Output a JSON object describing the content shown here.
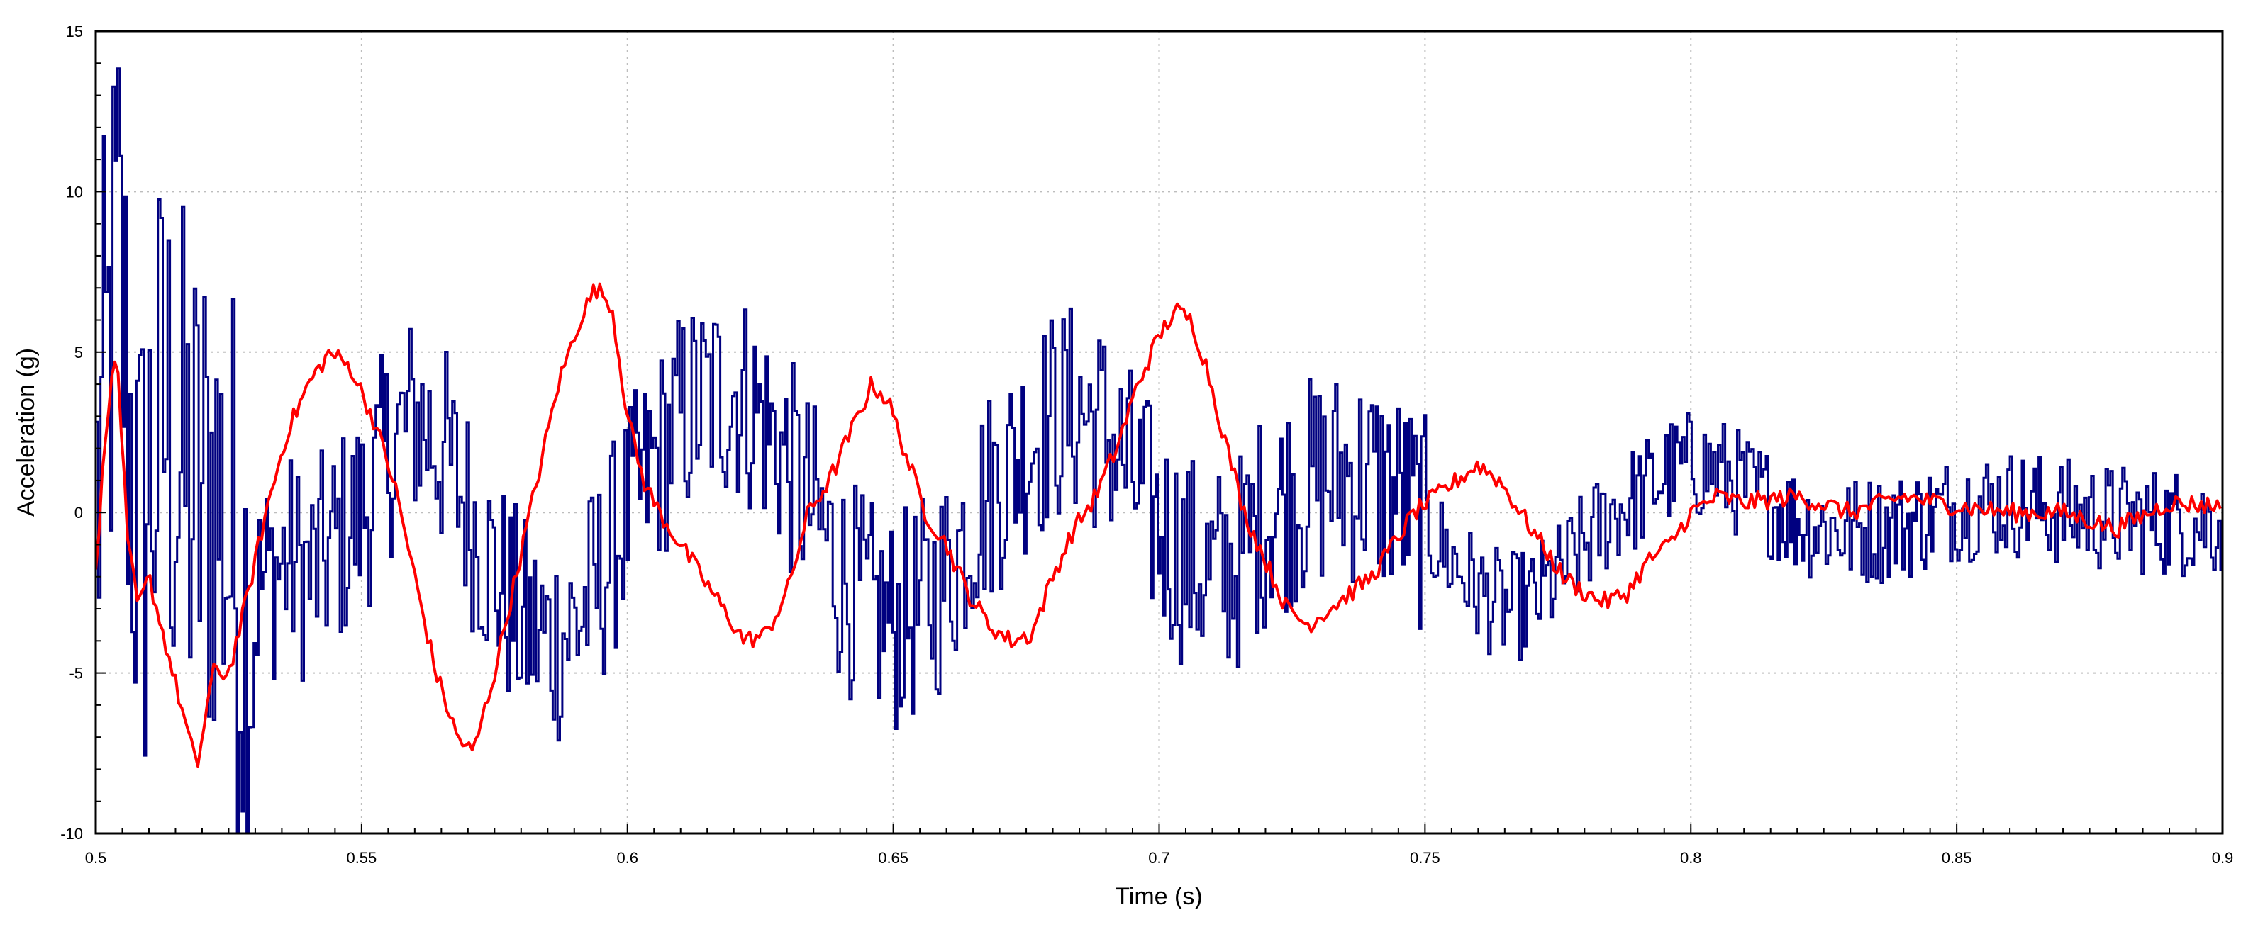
{
  "chart_data": {
    "type": "line",
    "title": "",
    "xlabel": "Time (s)",
    "ylabel": "Acceleration (g)",
    "xlim": [
      0.5,
      0.9
    ],
    "ylim": [
      -10,
      15
    ],
    "x_ticks": [
      0.5,
      0.55,
      0.6,
      0.65,
      0.7,
      0.75,
      0.8,
      0.85,
      0.9
    ],
    "x_tick_labels": [
      "0.5",
      "0.55",
      "0.6",
      "0.65",
      "0.7",
      "0.75",
      "0.8",
      "0.85",
      "0.9"
    ],
    "y_ticks": [
      -10,
      -5,
      0,
      5,
      10,
      15
    ],
    "y_tick_labels": [
      "-10",
      "-5",
      "0",
      "5",
      "10",
      "15"
    ],
    "grid": true,
    "legend": "none",
    "colors": {
      "series_blue": "#000080",
      "series_red": "#ff0000",
      "grid": "#bdbdbd"
    },
    "series": [
      {
        "color": "#000080",
        "band": 3.5,
        "x": [
          0.5,
          0.502,
          0.504,
          0.506,
          0.508,
          0.51,
          0.513,
          0.516,
          0.519,
          0.522,
          0.525,
          0.528,
          0.532,
          0.536,
          0.54,
          0.545,
          0.55,
          0.555,
          0.56,
          0.565,
          0.57,
          0.575,
          0.58,
          0.585,
          0.59,
          0.595,
          0.6,
          0.605,
          0.61,
          0.615,
          0.62,
          0.625,
          0.63,
          0.635,
          0.64,
          0.645,
          0.65,
          0.655,
          0.66,
          0.665,
          0.67,
          0.675,
          0.68,
          0.685,
          0.69,
          0.695,
          0.7,
          0.705,
          0.71,
          0.715,
          0.72,
          0.725,
          0.73,
          0.735,
          0.74,
          0.745,
          0.75,
          0.755,
          0.76,
          0.765,
          0.77,
          0.775,
          0.78,
          0.785,
          0.79,
          0.795,
          0.8,
          0.805,
          0.81,
          0.815,
          0.82,
          0.83,
          0.84,
          0.85,
          0.86,
          0.87,
          0.88,
          0.89,
          0.9
        ],
        "y": [
          0,
          4,
          8,
          3,
          -2,
          1,
          3,
          1,
          0,
          1,
          -1,
          -3,
          -2,
          -1.5,
          -2,
          -1,
          0,
          2,
          3,
          2,
          0,
          -2,
          -3.5,
          -4,
          -3.5,
          -2,
          0,
          1.5,
          3,
          3.5,
          3.8,
          3,
          1.5,
          0,
          -2,
          -3,
          -3.5,
          -3,
          -2,
          0,
          1,
          2.2,
          3,
          3.2,
          2.5,
          1,
          -0.5,
          -1.5,
          -2,
          -1.5,
          0,
          0.5,
          1,
          1.2,
          1,
          0.5,
          -0.5,
          -1.5,
          -2.5,
          -3,
          -2.8,
          -2,
          -1,
          0,
          0.5,
          1.2,
          1.5,
          1.3,
          0.8,
          0.3,
          -0.3,
          -0.6,
          -0.4,
          0.2,
          0.3,
          0,
          -0.2,
          -0.3,
          -0.3
        ]
      },
      {
        "color": "#ff0000",
        "band": 0,
        "x": [
          0.5,
          0.502,
          0.504,
          0.506,
          0.508,
          0.51,
          0.513,
          0.516,
          0.519,
          0.522,
          0.525,
          0.528,
          0.532,
          0.536,
          0.54,
          0.544,
          0.548,
          0.552,
          0.556,
          0.56,
          0.564,
          0.568,
          0.571,
          0.575,
          0.579,
          0.583,
          0.587,
          0.591,
          0.594,
          0.597,
          0.6,
          0.603,
          0.606,
          0.61,
          0.614,
          0.618,
          0.622,
          0.626,
          0.63,
          0.634,
          0.638,
          0.642,
          0.646,
          0.649,
          0.652,
          0.656,
          0.66,
          0.664,
          0.668,
          0.672,
          0.676,
          0.68,
          0.684,
          0.688,
          0.692,
          0.696,
          0.7,
          0.703,
          0.706,
          0.709,
          0.712,
          0.716,
          0.72,
          0.724,
          0.728,
          0.732,
          0.736,
          0.74,
          0.744,
          0.748,
          0.752,
          0.756,
          0.76,
          0.764,
          0.768,
          0.772,
          0.776,
          0.78,
          0.784,
          0.788,
          0.792,
          0.796,
          0.8,
          0.805,
          0.81,
          0.82,
          0.83,
          0.84,
          0.85,
          0.86,
          0.87,
          0.88,
          0.89,
          0.9
        ],
        "y": [
          -2,
          3,
          5,
          -1,
          -3,
          -2,
          -4,
          -6,
          -8,
          -5,
          -5,
          -3,
          0,
          2.5,
          4,
          5,
          4.5,
          3,
          1,
          -2,
          -5,
          -7,
          -7.5,
          -5,
          -2,
          1,
          4,
          6,
          7,
          6.5,
          3,
          1,
          0,
          -1,
          -2,
          -3,
          -4,
          -3.8,
          -2.5,
          0,
          1,
          2.5,
          4,
          3.5,
          2,
          0,
          -1,
          -2.5,
          -3.5,
          -4,
          -3.8,
          -2,
          -0.5,
          0.5,
          2,
          4,
          5.5,
          6.3,
          6,
          4.5,
          2.5,
          0,
          -1.5,
          -3,
          -3.5,
          -3,
          -2.5,
          -2,
          -1,
          0,
          0.5,
          1,
          1.5,
          1,
          0,
          -1,
          -2,
          -2.5,
          -2.8,
          -2.5,
          -1.5,
          -1,
          0,
          0.5,
          0.3,
          0.5,
          0,
          0.5,
          0.2,
          0,
          0,
          -0.5,
          0.3,
          0.2
        ]
      }
    ]
  }
}
